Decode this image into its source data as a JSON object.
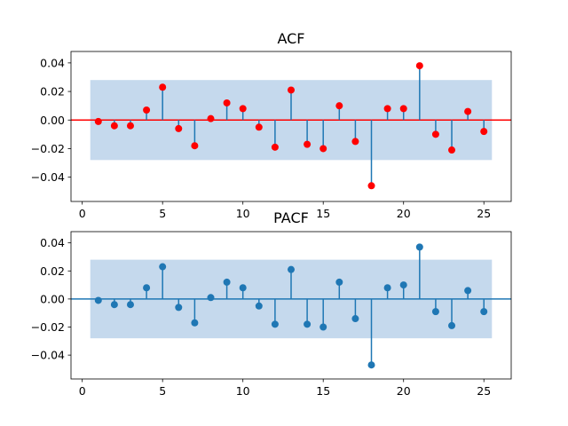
{
  "chart_data": [
    {
      "type": "stem",
      "title": "ACF",
      "xlabel": "",
      "ylabel": "",
      "xlim": [
        -0.7,
        26.7
      ],
      "ylim": [
        -0.057,
        0.048
      ],
      "xticks": [
        "0",
        "5",
        "10",
        "15",
        "20",
        "25"
      ],
      "yticks": [
        "0.04",
        "0.02",
        "0.00",
        "−0.02",
        "−0.04"
      ],
      "confint": [
        -0.028,
        0.028
      ],
      "confint_range": [
        0.5,
        25.5
      ],
      "zero_line_color": "#ff0000",
      "marker_color": "#ff0000",
      "stem_color": "#1f77b4",
      "band_color": "#c5d9ed",
      "x": [
        1,
        2,
        3,
        4,
        5,
        6,
        7,
        8,
        9,
        10,
        11,
        12,
        13,
        14,
        15,
        16,
        17,
        18,
        19,
        20,
        21,
        22,
        23,
        24,
        25
      ],
      "values": [
        -0.001,
        -0.004,
        -0.004,
        0.007,
        0.023,
        -0.006,
        -0.018,
        0.001,
        0.012,
        0.008,
        -0.005,
        -0.019,
        0.021,
        -0.017,
        -0.02,
        0.01,
        -0.015,
        -0.046,
        0.008,
        0.008,
        0.038,
        -0.01,
        -0.021,
        0.006,
        -0.008
      ]
    },
    {
      "type": "stem",
      "title": "PACF",
      "xlabel": "",
      "ylabel": "",
      "xlim": [
        -0.7,
        26.7
      ],
      "ylim": [
        -0.057,
        0.048
      ],
      "xticks": [
        "0",
        "5",
        "10",
        "15",
        "20",
        "25"
      ],
      "yticks": [
        "0.04",
        "0.02",
        "0.00",
        "−0.02",
        "−0.04"
      ],
      "confint": [
        -0.028,
        0.028
      ],
      "confint_range": [
        0.5,
        25.5
      ],
      "zero_line_color": "#1f77b4",
      "marker_color": "#1f77b4",
      "stem_color": "#1f77b4",
      "band_color": "#c5d9ed",
      "x": [
        1,
        2,
        3,
        4,
        5,
        6,
        7,
        8,
        9,
        10,
        11,
        12,
        13,
        14,
        15,
        16,
        17,
        18,
        19,
        20,
        21,
        22,
        23,
        24,
        25
      ],
      "values": [
        -0.001,
        -0.004,
        -0.004,
        0.008,
        0.023,
        -0.006,
        -0.017,
        0.001,
        0.012,
        0.008,
        -0.005,
        -0.018,
        0.021,
        -0.018,
        -0.02,
        0.012,
        -0.014,
        -0.047,
        0.008,
        0.01,
        0.037,
        -0.009,
        -0.019,
        0.006,
        -0.009
      ]
    }
  ]
}
